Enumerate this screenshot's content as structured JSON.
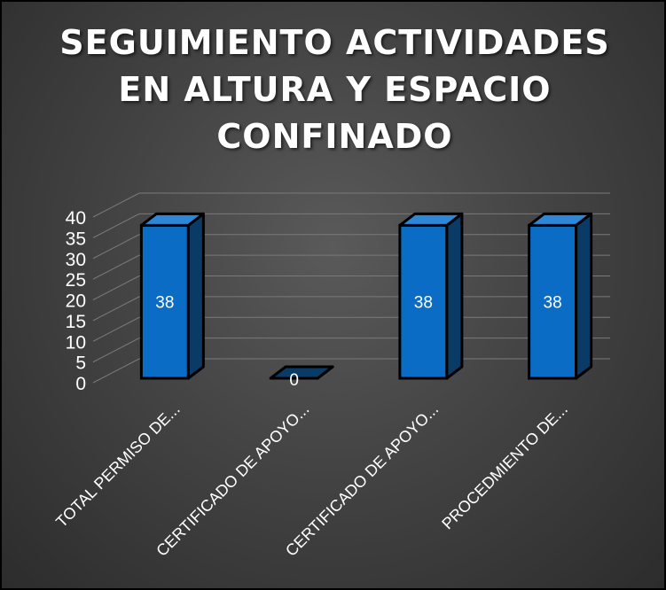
{
  "chart_data": {
    "type": "bar",
    "title_lines": [
      "SEGUIMIENTO ACTIVIDADES",
      "EN ALTURA Y ESPACIO",
      "CONFINADO"
    ],
    "categories": [
      "TOTAL PERMISO DE...",
      "CERTIFICADO DE APOYO...",
      "CERTIFICADO DE APOYO...",
      "PROCEDMIENTO DE..."
    ],
    "values": [
      38,
      0,
      38,
      38
    ],
    "data_labels": [
      "38",
      "0",
      "38",
      "38"
    ],
    "yticks": [
      "0",
      "5",
      "10",
      "15",
      "20",
      "25",
      "30",
      "35",
      "40"
    ],
    "ylim": [
      0,
      40
    ],
    "grid": true,
    "legend": "none",
    "bar_color": "#0A6CC4",
    "bar_side_color": "#0A3A66",
    "bar_top_color": "#2E86D6"
  }
}
